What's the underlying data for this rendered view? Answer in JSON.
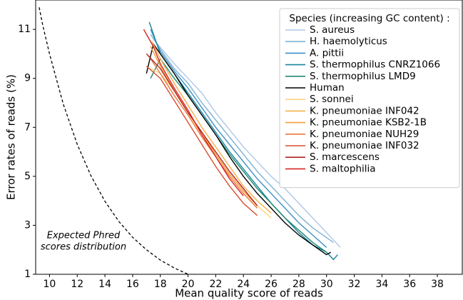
{
  "chart_data": {
    "type": "line",
    "x_label": "Mean quality score of reads",
    "y_label": "Error rates of reads (%)",
    "xlim": [
      9,
      39.8
    ],
    "ylim": [
      1,
      12.2
    ],
    "xticks": [
      10,
      12,
      14,
      16,
      18,
      20,
      22,
      24,
      26,
      28,
      30,
      32,
      34,
      36,
      38
    ],
    "yticks": [
      1,
      3,
      5,
      7,
      9,
      11
    ],
    "grid": false,
    "legend": {
      "title": "Species (increasing GC content) :",
      "corner": "upper right"
    },
    "reference_curve": {
      "annotation": [
        "Expected Phred",
        "scores distribution"
      ],
      "color": "#000000",
      "style": "dashed",
      "x": [
        9.25,
        9.5,
        10,
        11,
        12,
        13,
        14,
        15,
        16,
        17,
        18,
        19,
        20
      ],
      "values": [
        11.9,
        11.2,
        10,
        7.94,
        6.31,
        5.01,
        3.98,
        3.16,
        2.51,
        2.0,
        1.58,
        1.26,
        1.0
      ]
    },
    "series": [
      {
        "name": "S. aureus",
        "color": "#aec7e8",
        "x": [
          17.5,
          19,
          20,
          21,
          22,
          23,
          24,
          25,
          26,
          27,
          28,
          29,
          30,
          31
        ],
        "values": [
          10.6,
          9.6,
          9.0,
          8.4,
          7.6,
          6.9,
          6.2,
          5.6,
          5.0,
          4.5,
          3.9,
          3.3,
          2.7,
          2.1
        ]
      },
      {
        "name": "H. haemolyticus",
        "color": "#7fb3d5",
        "x": [
          17.3,
          18,
          19,
          20,
          21,
          22,
          23,
          24,
          25,
          26,
          27,
          28,
          29,
          30,
          30.5
        ],
        "values": [
          10.8,
          10.2,
          9.4,
          8.8,
          8.0,
          7.3,
          6.6,
          5.9,
          5.2,
          4.6,
          4.0,
          3.4,
          2.9,
          2.5,
          2.3
        ]
      },
      {
        "name": "A. pittii",
        "color": "#3f8fc4",
        "x": [
          17.3,
          18,
          19,
          20,
          21,
          22,
          23,
          24,
          25,
          26,
          27,
          28,
          29,
          30
        ],
        "values": [
          11.0,
          10.1,
          9.3,
          8.6,
          7.8,
          7.0,
          6.3,
          5.6,
          4.9,
          4.3,
          3.7,
          3.1,
          2.6,
          2.1
        ]
      },
      {
        "name": "S. thermophilus CNRZ1066",
        "color": "#17869e",
        "x": [
          17.2,
          18,
          19,
          20,
          21,
          22,
          23,
          24,
          25,
          26,
          27,
          28,
          29,
          30,
          30.5,
          30.8
        ],
        "values": [
          11.3,
          10.0,
          9.2,
          8.4,
          7.6,
          6.8,
          6.0,
          5.3,
          4.6,
          3.9,
          3.3,
          2.7,
          2.2,
          1.9,
          1.6,
          1.8
        ]
      },
      {
        "name": "S. thermophilus LMD9",
        "color": "#1f8a70",
        "x": [
          17.3,
          18,
          19,
          20,
          21,
          22,
          23,
          24,
          25,
          26,
          27,
          28,
          29,
          30
        ],
        "values": [
          9.0,
          9.8,
          9.0,
          8.3,
          7.5,
          6.7,
          5.9,
          5.2,
          4.5,
          3.9,
          3.3,
          2.8,
          2.3,
          1.9
        ]
      },
      {
        "name": "Human",
        "color": "#000000",
        "x": [
          17,
          17.5,
          18,
          19,
          20,
          21,
          22,
          23,
          24,
          25,
          26,
          27,
          28,
          29,
          30,
          30.3
        ],
        "values": [
          9.2,
          10.4,
          10.0,
          9.2,
          8.3,
          7.5,
          6.7,
          5.8,
          5.0,
          4.3,
          3.7,
          3.1,
          2.6,
          2.2,
          1.8,
          1.9
        ]
      },
      {
        "name": "S. sonnei",
        "color": "#fdd37a",
        "x": [
          17.3,
          18,
          19,
          20,
          21,
          22,
          23,
          24,
          25,
          26
        ],
        "values": [
          9.4,
          9.2,
          8.5,
          7.6,
          6.7,
          5.9,
          5.1,
          4.4,
          3.8,
          3.3
        ]
      },
      {
        "name": "K. pneumoniae INF042",
        "color": "#f7b04a",
        "x": [
          17.4,
          18,
          19,
          20,
          21,
          22,
          23,
          24,
          25,
          26
        ],
        "values": [
          10.5,
          9.8,
          8.8,
          7.9,
          7.0,
          6.2,
          5.4,
          4.6,
          4.0,
          3.5
        ]
      },
      {
        "name": "K. pneumoniae KSB2-1B",
        "color": "#f39c3a",
        "x": [
          17.3,
          18,
          19,
          20,
          21,
          22,
          23,
          24,
          25
        ],
        "values": [
          10.3,
          9.5,
          8.5,
          7.6,
          6.8,
          5.9,
          5.1,
          4.4,
          3.8
        ]
      },
      {
        "name": "K. pneumoniae NUH29",
        "color": "#e8793a",
        "x": [
          17.3,
          18,
          19,
          20,
          21,
          22,
          23,
          24,
          25
        ],
        "values": [
          9.8,
          9.2,
          8.3,
          7.5,
          6.6,
          5.8,
          5.0,
          4.3,
          3.7
        ]
      },
      {
        "name": "K. pneumoniae INF032",
        "color": "#d94d30",
        "x": [
          17,
          18,
          19,
          20,
          21,
          22,
          23,
          24,
          25
        ],
        "values": [
          9.5,
          9.0,
          8.1,
          7.2,
          6.3,
          5.4,
          4.6,
          3.9,
          3.4
        ]
      },
      {
        "name": "S. marcescens",
        "color": "#b22222",
        "x": [
          17,
          18,
          19,
          20,
          21,
          22,
          23,
          24,
          25
        ],
        "values": [
          10.0,
          9.4,
          8.5,
          7.6,
          6.8,
          6.0,
          5.2,
          4.5,
          3.8
        ]
      },
      {
        "name": "S. maltophilia",
        "color": "#d62728",
        "x": [
          16.8,
          17.5,
          18,
          19,
          20,
          21,
          22,
          23,
          24
        ],
        "values": [
          11.0,
          10.3,
          9.6,
          8.6,
          7.7,
          6.7,
          5.8,
          4.9,
          4.2
        ]
      }
    ]
  }
}
